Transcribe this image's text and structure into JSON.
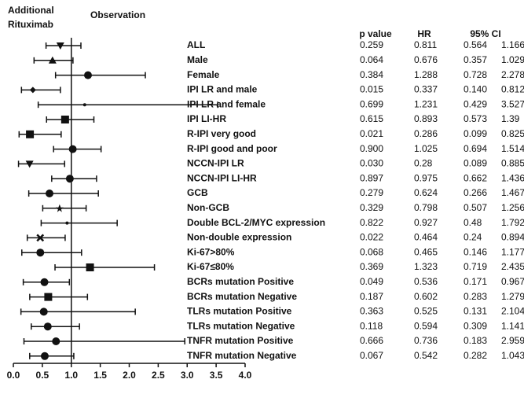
{
  "chart_data": {
    "type": "forest",
    "header_left": [
      "Additional",
      "Rituximab"
    ],
    "header_right": "Observation",
    "column_headers": {
      "p": "p value",
      "hr": "HR",
      "ci": "95% CI"
    },
    "categories": [
      "ALL",
      "Male",
      "Female",
      "IPI LR and male",
      "IPI LR and female",
      "IPI LI-HR",
      "R-IPI very good",
      "R-IPI good and poor",
      "NCCN-IPI LR",
      "NCCN-IPI LI-HR",
      "GCB",
      "Non-GCB",
      "Double BCL-2/MYC expression",
      "Non-double expression",
      "Ki-67>80%",
      "Ki-67≤80%",
      "BCRs mutation Positive",
      "BCRs mutation Negative",
      "TLRs mutation Positive",
      "TLRs mutation Negative",
      "TNFR mutation Positive",
      "TNFR mutation Negative"
    ],
    "p_values": [
      "0.259",
      "0.064",
      "0.384",
      "0.015",
      "0.699",
      "0.615",
      "0.021",
      "0.900",
      "0.030",
      "0.897",
      "0.279",
      "0.329",
      "0.822",
      "0.022",
      "0.068",
      "0.369",
      "0.049",
      "0.187",
      "0.363",
      "0.118",
      "0.666",
      "0.067"
    ],
    "values": [
      0.811,
      0.676,
      1.288,
      0.337,
      1.231,
      0.893,
      0.286,
      1.025,
      0.28,
      0.975,
      0.624,
      0.798,
      0.927,
      0.464,
      0.465,
      1.323,
      0.536,
      0.602,
      0.525,
      0.594,
      0.736,
      0.542
    ],
    "ci_lower": {
      "values": [
        0.564,
        0.357,
        0.728,
        0.14,
        0.429,
        0.573,
        0.099,
        0.694,
        0.089,
        0.662,
        0.266,
        0.507,
        0.48,
        0.24,
        0.146,
        0.719,
        0.171,
        0.283,
        0.131,
        0.309,
        0.183,
        0.282
      ],
      "value_labels": [
        "0.564",
        "0.357",
        "0.728",
        "0.140",
        "0.429",
        "0.573",
        "0.099",
        "0.694",
        "0.089",
        "0.662",
        "0.266",
        "0.507",
        "0.48",
        "0.24",
        "0.146",
        "0.719",
        "0.171",
        "0.283",
        "0.131",
        "0.309",
        "0.183",
        "0.282"
      ]
    },
    "ci_upper": [
      1.166,
      1.029,
      2.278,
      0.812,
      3.527,
      1.39,
      0.825,
      1.514,
      0.885,
      1.436,
      1.467,
      1.256,
      1.792,
      0.894,
      1.177,
      2.435,
      0.967,
      1.279,
      2.104,
      1.141,
      2.959,
      1.043
    ],
    "markers": [
      "triangle-down",
      "triangle",
      "circle",
      "diamond",
      "dot",
      "square",
      "square",
      "circle",
      "triangle-down",
      "circle",
      "circle",
      "star",
      "dot",
      "cross",
      "circle",
      "square",
      "circle",
      "square",
      "circle",
      "circle",
      "circle",
      "circle"
    ],
    "color": "#111111",
    "reference_line": 1,
    "xlim": [
      0,
      4
    ],
    "xticks": [
      {
        "value": 0,
        "label": "0.0"
      },
      0.5,
      {
        "value": 1,
        "label": "1.0"
      },
      1.5,
      {
        "value": 2,
        "label": "2.0"
      },
      2.5,
      {
        "value": 3,
        "label": "3.0"
      },
      3.5,
      {
        "value": 4,
        "label": "4.0"
      }
    ]
  }
}
